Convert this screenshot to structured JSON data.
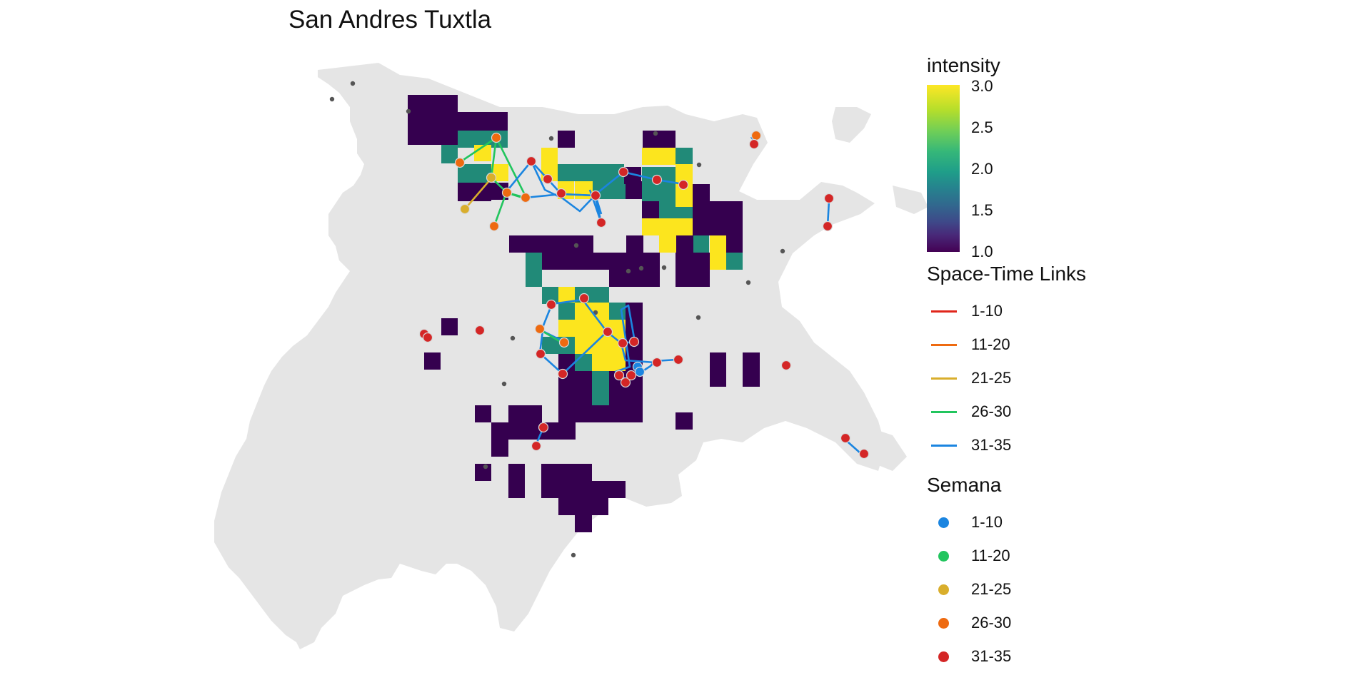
{
  "title": "San Andres Tuxtla",
  "colors": {
    "background": "#ffffff",
    "city_fill": "#e5e5e5",
    "intensity_low": "#35004f",
    "intensity_mid": "#218a78",
    "intensity_high": "#fce51e",
    "link_1_10": "#e0261b",
    "link_11_20": "#ee6a10",
    "link_21_25": "#d9ae2c",
    "link_26_30": "#22c55e",
    "link_31_35": "#1b85e0",
    "semana_1_10": "#1b85e0",
    "semana_11_20": "#22c55e",
    "semana_21_25": "#d9ae2c",
    "semana_26_30": "#ee6a10",
    "semana_31_35": "#d42626",
    "sampling_point": "#555555"
  },
  "legend": {
    "intensity": {
      "title": "intensity",
      "ticks": [
        "3.0",
        "2.5",
        "2.0",
        "1.5",
        "1.0"
      ],
      "range": [
        1.0,
        3.0
      ]
    },
    "links": {
      "title": "Space-Time Links",
      "items": [
        {
          "label": "1-10",
          "color_key": "link_1_10"
        },
        {
          "label": "11-20",
          "color_key": "link_11_20"
        },
        {
          "label": "21-25",
          "color_key": "link_21_25"
        },
        {
          "label": "26-30",
          "color_key": "link_26_30"
        },
        {
          "label": "31-35",
          "color_key": "link_31_35"
        }
      ]
    },
    "semana": {
      "title": "Semana",
      "items": [
        {
          "label": "1-10",
          "color_key": "semana_1_10"
        },
        {
          "label": "11-20",
          "color_key": "semana_11_20"
        },
        {
          "label": "21-25",
          "color_key": "semana_21_25"
        },
        {
          "label": "26-30",
          "color_key": "semana_26_30"
        },
        {
          "label": "31-35",
          "color_key": "semana_31_35"
        }
      ]
    }
  }
}
